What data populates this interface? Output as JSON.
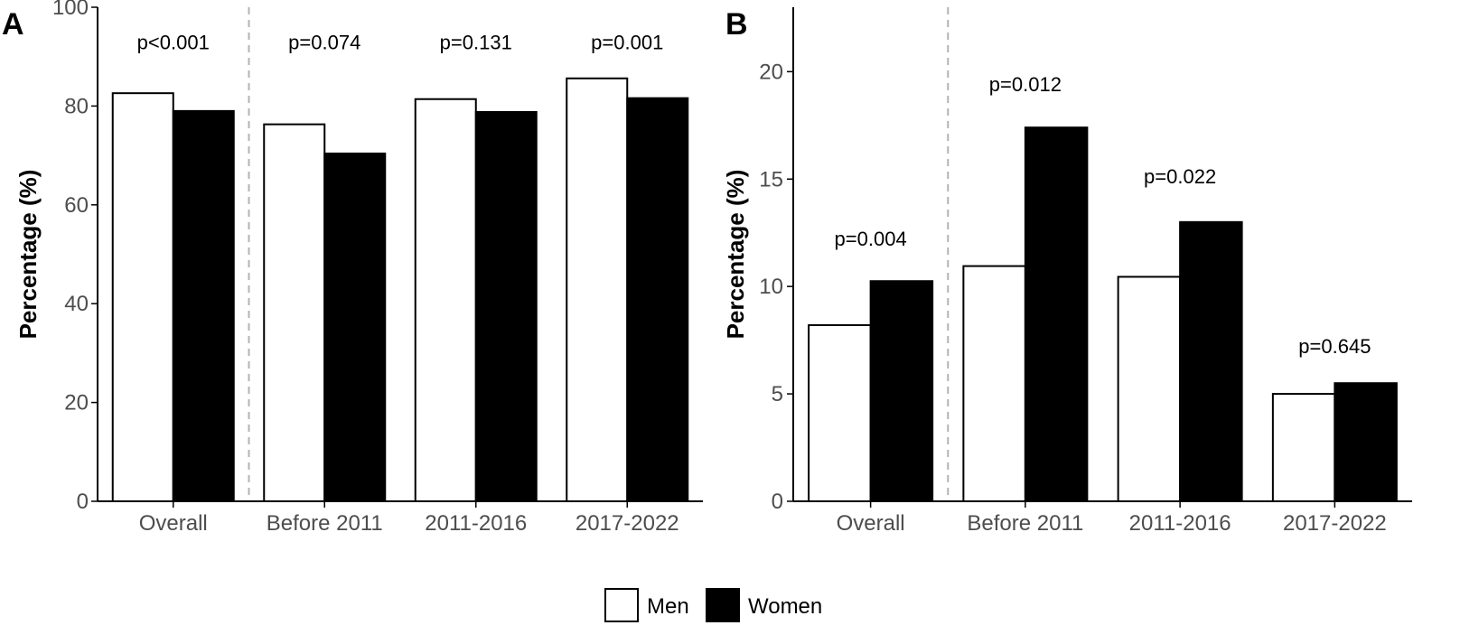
{
  "colors": {
    "men": "#ffffff",
    "women": "#000000",
    "axis": "#000000",
    "tick_text": "#4d4d4d",
    "divider": "#b3b3b3"
  },
  "legend": {
    "position": "bottom",
    "items": [
      "Men",
      "Women"
    ]
  },
  "chart_data": [
    {
      "panel_label": "A",
      "type": "bar",
      "ylabel": "Percentage (%)",
      "ylim": [
        0,
        100
      ],
      "yticks": [
        0,
        20,
        40,
        60,
        80,
        100
      ],
      "categories": [
        "Overall",
        "Before 2011",
        "2011-2016",
        "2017-2022"
      ],
      "series": [
        {
          "name": "Men",
          "values": [
            82.6,
            76.3,
            81.4,
            85.6
          ]
        },
        {
          "name": "Women",
          "values": [
            79.0,
            70.4,
            78.8,
            81.6
          ]
        }
      ],
      "annotations": [
        "p<0.001",
        "p=0.074",
        "p=0.131",
        "p=0.001"
      ],
      "annotation_y": [
        91.5,
        91.5,
        91.5,
        91.5
      ],
      "divider_after_category": 0,
      "grid": false
    },
    {
      "panel_label": "B",
      "type": "bar",
      "ylabel": "Percentage (%)",
      "ylim": [
        0,
        23
      ],
      "yticks": [
        0,
        5,
        10,
        15,
        20
      ],
      "categories": [
        "Overall",
        "Before 2011",
        "2011-2016",
        "2017-2022"
      ],
      "series": [
        {
          "name": "Men",
          "values": [
            8.2,
            10.95,
            10.45,
            5.0
          ]
        },
        {
          "name": "Women",
          "values": [
            10.25,
            17.4,
            13.0,
            5.5
          ]
        }
      ],
      "annotations": [
        "p=0.004",
        "p=0.012",
        "p=0.022",
        "p=0.645"
      ],
      "annotation_y": [
        11.9,
        19.1,
        14.8,
        6.9
      ],
      "divider_after_category": 0,
      "grid": false
    }
  ]
}
